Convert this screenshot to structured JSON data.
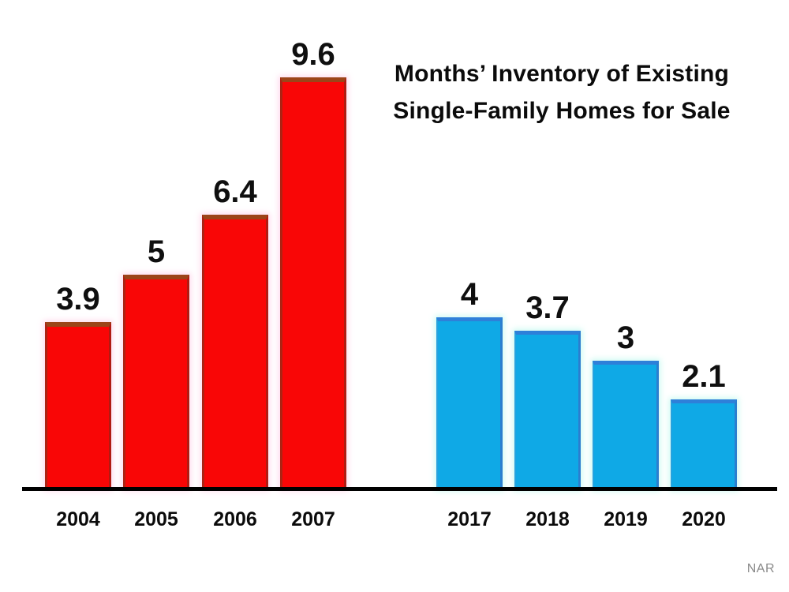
{
  "header": {
    "title_line1": "Months’ Inventory of Existing",
    "title_line2": "Single-Family Homes for Sale"
  },
  "footer": {
    "source": "NAR"
  },
  "colors": {
    "red_bar": "#f90606",
    "red_bar_cap": "#9c4519",
    "blue_bar": "#0fa9e6",
    "blue_bar_cap": "#2e80d9",
    "axis": "#000000",
    "source_text": "#8a8a8a",
    "label_text": "#0b0b0b"
  },
  "chart_data": {
    "type": "bar",
    "title": "Months’ Inventory of Existing Single-Family Homes for Sale",
    "categories": [
      "2004",
      "2005",
      "2006",
      "2007",
      "2017",
      "2018",
      "2019",
      "2020"
    ],
    "values": [
      3.9,
      5,
      6.4,
      9.6,
      4,
      3.7,
      3,
      2.1
    ],
    "series": [
      {
        "name": "2004-2007",
        "color": "#f90606",
        "style": "red",
        "categories": [
          "2004",
          "2005",
          "2006",
          "2007"
        ],
        "values": [
          3.9,
          5,
          6.4,
          9.6
        ]
      },
      {
        "name": "2017-2020",
        "color": "#0fa9e6",
        "style": "blue",
        "categories": [
          "2017",
          "2018",
          "2019",
          "2020"
        ],
        "values": [
          4,
          3.7,
          3,
          2.1
        ]
      }
    ],
    "xlabel": "",
    "ylabel": "",
    "ylim": [
      0,
      10
    ],
    "grid": false,
    "legend_position": "none",
    "data_labels": true,
    "source": "NAR"
  }
}
